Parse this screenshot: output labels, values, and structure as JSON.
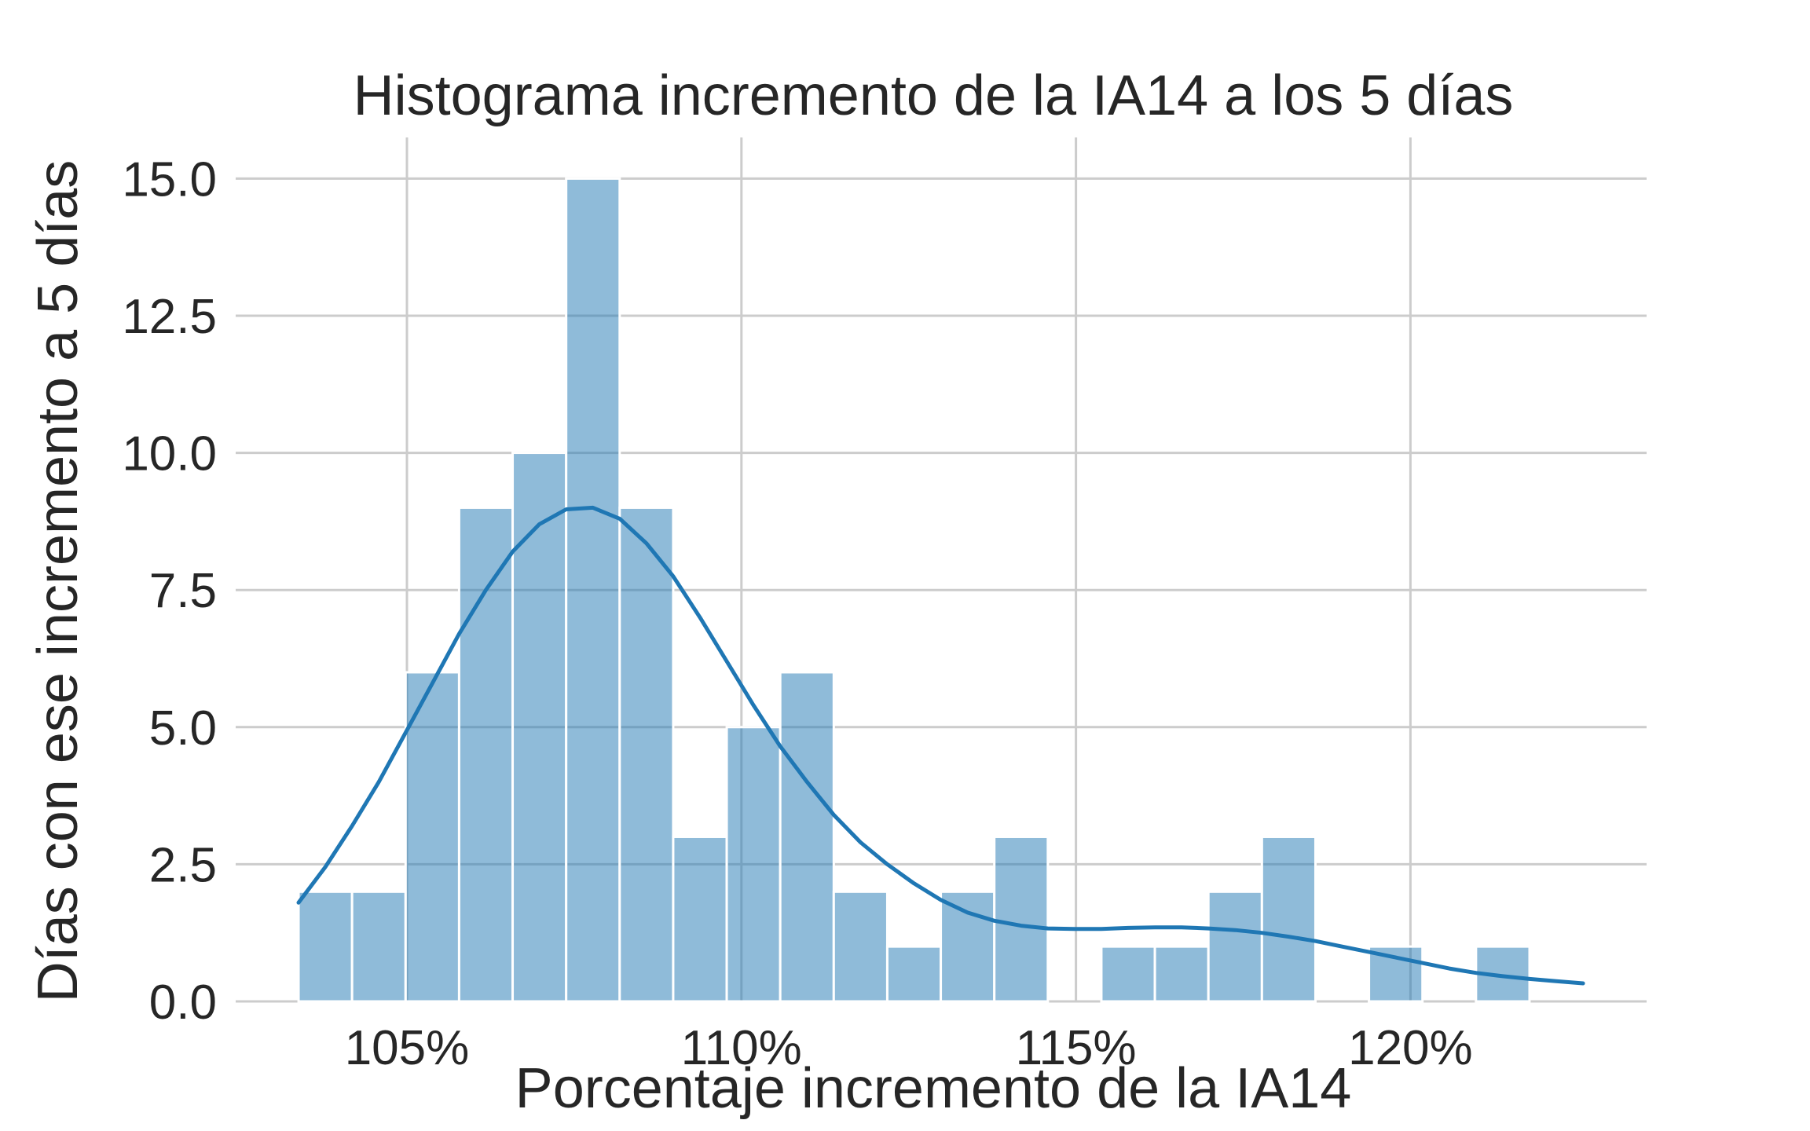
{
  "chart_data": {
    "type": "bar",
    "title": "Histograma incremento de la IA14 a los 5 días",
    "xlabel": "Porcentaje incremento de la IA14",
    "ylabel": "Días con ese incremento a 5 días",
    "xlim": [
      1.0244,
      1.2353
    ],
    "ylim": [
      0,
      15.75
    ],
    "x_ticks": [
      {
        "value": 1.05,
        "label": "105%"
      },
      {
        "value": 1.1,
        "label": "110%"
      },
      {
        "value": 1.15,
        "label": "115%"
      },
      {
        "value": 1.2,
        "label": "120%"
      }
    ],
    "y_ticks": [
      {
        "value": 0,
        "label": "0.0"
      },
      {
        "value": 2.5,
        "label": "2.5"
      },
      {
        "value": 5,
        "label": "5.0"
      },
      {
        "value": 7.5,
        "label": "7.5"
      },
      {
        "value": 10,
        "label": "10.0"
      },
      {
        "value": 12.5,
        "label": "12.5"
      },
      {
        "value": 15,
        "label": "15.0"
      }
    ],
    "grid": true,
    "bin_start": 1.0338,
    "bin_width": 0.008,
    "counts": [
      2,
      2,
      6,
      9,
      10,
      15,
      9,
      3,
      5,
      6,
      2,
      1,
      2,
      3,
      0,
      1,
      1,
      2,
      3,
      0,
      1,
      0,
      1
    ],
    "kde": {
      "x": [
        1.0338,
        1.0378,
        1.0418,
        1.0458,
        1.0498,
        1.0538,
        1.0578,
        1.0618,
        1.0658,
        1.0698,
        1.0738,
        1.0778,
        1.0818,
        1.0858,
        1.0898,
        1.0938,
        1.0978,
        1.1018,
        1.1058,
        1.1098,
        1.1138,
        1.1178,
        1.1218,
        1.1258,
        1.1298,
        1.1338,
        1.1378,
        1.1418,
        1.1458,
        1.1498,
        1.1538,
        1.1578,
        1.1618,
        1.1658,
        1.1698,
        1.1738,
        1.1778,
        1.1818,
        1.1858,
        1.1898,
        1.1938,
        1.1978,
        1.2018,
        1.2058,
        1.2098,
        1.2138,
        1.2178,
        1.2218,
        1.2258
      ],
      "y": [
        1.8,
        2.45,
        3.2,
        4.0,
        4.9,
        5.8,
        6.7,
        7.5,
        8.2,
        8.7,
        8.97,
        9.0,
        8.8,
        8.35,
        7.75,
        7.0,
        6.2,
        5.4,
        4.65,
        4.0,
        3.4,
        2.9,
        2.5,
        2.15,
        1.85,
        1.62,
        1.47,
        1.38,
        1.33,
        1.32,
        1.32,
        1.34,
        1.35,
        1.35,
        1.33,
        1.3,
        1.25,
        1.18,
        1.1,
        1.0,
        0.9,
        0.8,
        0.7,
        0.6,
        0.52,
        0.46,
        0.41,
        0.37,
        0.33
      ]
    }
  }
}
